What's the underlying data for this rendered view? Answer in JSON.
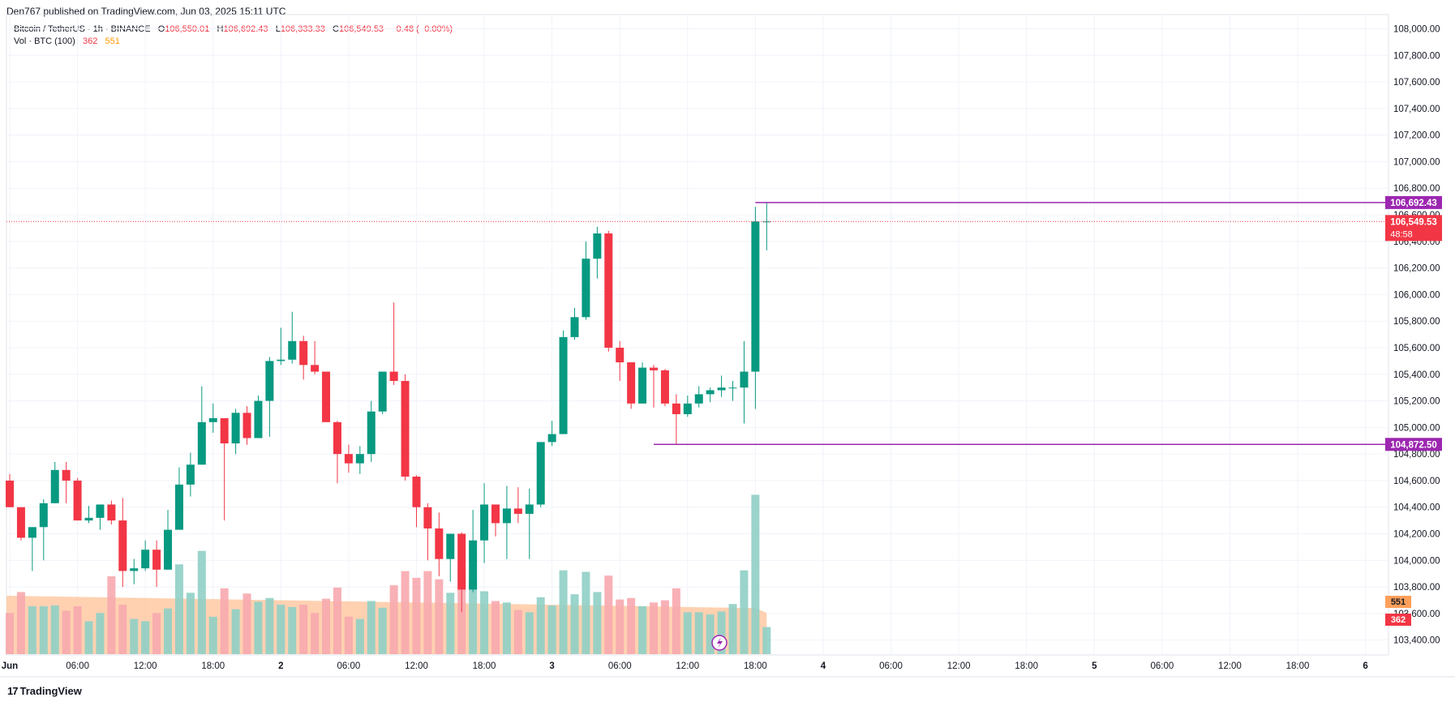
{
  "header": {
    "publish_line": "Den767 published on TradingView.com, Jun 03, 2025 15:11 UTC"
  },
  "legend": {
    "symbol": "Bitcoin / TetherUS · 1h · BINANCE",
    "open_label": "O",
    "open": "106,550.01",
    "high_label": "H",
    "high": "106,692.43",
    "low_label": "L",
    "low": "106,333.33",
    "close_label": "C",
    "close": "106,549.53",
    "change": "−0.48 (−0.00%)",
    "volume_label": "Vol · BTC (100)",
    "volume_current": "362",
    "volume_ma": "551"
  },
  "price_labels": {
    "high_level": "106,692.43",
    "current_price": "106,549.53",
    "countdown": "48:58",
    "low_level": "104,872.50",
    "vol_ma_badge": "551",
    "vol_badge": "362"
  },
  "colors": {
    "up": "#089981",
    "down": "#F23645",
    "vol_up": "#8FCFC5",
    "vol_down": "#F7A9AE",
    "vol_ma_area": "#FFC9A3",
    "level_line": "#9C27B0",
    "grid": "#F0F3FA"
  },
  "logo": {
    "text": "TradingView"
  },
  "chart_data": {
    "type": "candlestick",
    "symbol": "Bitcoin / TetherUS",
    "interval": "1h",
    "exchange": "BINANCE",
    "y_ticks": [
      "108,000.00",
      "107,800.00",
      "107,600.00",
      "107,400.00",
      "107,200.00",
      "107,000.00",
      "106,800.00",
      "106,600.00",
      "106,400.00",
      "106,200.00",
      "106,000.00",
      "105,800.00",
      "105,600.00",
      "105,400.00",
      "105,200.00",
      "105,000.00",
      "104,800.00",
      "104,600.00",
      "104,400.00",
      "104,200.00",
      "104,000.00",
      "103,800.00",
      "103,600.00",
      "103,400.00"
    ],
    "ylim": [
      103300,
      108100
    ],
    "x_ticks": [
      {
        "label": "Jun",
        "index": 0
      },
      {
        "label": "06:00",
        "index": 6
      },
      {
        "label": "12:00",
        "index": 12
      },
      {
        "label": "18:00",
        "index": 18
      },
      {
        "label": "2",
        "index": 24
      },
      {
        "label": "06:00",
        "index": 30
      },
      {
        "label": "12:00",
        "index": 36
      },
      {
        "label": "18:00",
        "index": 42
      },
      {
        "label": "3",
        "index": 48
      },
      {
        "label": "06:00",
        "index": 54
      },
      {
        "label": "12:00",
        "index": 60
      },
      {
        "label": "18:00",
        "index": 66
      },
      {
        "label": "4",
        "index": 72
      },
      {
        "label": "06:00",
        "index": 78
      },
      {
        "label": "12:00",
        "index": 84
      },
      {
        "label": "18:00",
        "index": 90
      },
      {
        "label": "5",
        "index": 96
      },
      {
        "label": "06:00",
        "index": 102
      },
      {
        "label": "12:00",
        "index": 108
      },
      {
        "label": "18:00",
        "index": 114
      },
      {
        "label": "6",
        "index": 120
      }
    ],
    "candles": [
      {
        "o": 104600,
        "h": 104650,
        "l": 104400,
        "c": 104400,
        "v": 550
      },
      {
        "o": 104400,
        "h": 104400,
        "l": 104150,
        "c": 104170,
        "v": 830
      },
      {
        "o": 104170,
        "h": 104250,
        "l": 103920,
        "c": 104250,
        "v": 640
      },
      {
        "o": 104250,
        "h": 104460,
        "l": 104000,
        "c": 104430,
        "v": 640
      },
      {
        "o": 104430,
        "h": 104740,
        "l": 104430,
        "c": 104680,
        "v": 650
      },
      {
        "o": 104680,
        "h": 104740,
        "l": 104430,
        "c": 104600,
        "v": 580
      },
      {
        "o": 104600,
        "h": 104620,
        "l": 104300,
        "c": 104300,
        "v": 640
      },
      {
        "o": 104300,
        "h": 104410,
        "l": 104280,
        "c": 104320,
        "v": 440
      },
      {
        "o": 104320,
        "h": 104420,
        "l": 104230,
        "c": 104420,
        "v": 550
      },
      {
        "o": 104420,
        "h": 104450,
        "l": 104270,
        "c": 104300,
        "v": 1040
      },
      {
        "o": 104300,
        "h": 104470,
        "l": 103800,
        "c": 103920,
        "v": 660
      },
      {
        "o": 103920,
        "h": 104010,
        "l": 103820,
        "c": 103940,
        "v": 470
      },
      {
        "o": 103940,
        "h": 104150,
        "l": 103920,
        "c": 104080,
        "v": 440
      },
      {
        "o": 104080,
        "h": 104150,
        "l": 103800,
        "c": 103930,
        "v": 550
      },
      {
        "o": 103930,
        "h": 104380,
        "l": 103930,
        "c": 104230,
        "v": 610
      },
      {
        "o": 104230,
        "h": 104700,
        "l": 104230,
        "c": 104570,
        "v": 1200
      },
      {
        "o": 104570,
        "h": 104810,
        "l": 104480,
        "c": 104720,
        "v": 820
      },
      {
        "o": 104720,
        "h": 105310,
        "l": 104720,
        "c": 105040,
        "v": 1380
      },
      {
        "o": 105040,
        "h": 105180,
        "l": 104960,
        "c": 105070,
        "v": 500
      },
      {
        "o": 105070,
        "h": 105070,
        "l": 104300,
        "c": 104880,
        "v": 880
      },
      {
        "o": 104880,
        "h": 105140,
        "l": 104800,
        "c": 105110,
        "v": 600
      },
      {
        "o": 105110,
        "h": 105160,
        "l": 104870,
        "c": 104920,
        "v": 810
      },
      {
        "o": 104920,
        "h": 105240,
        "l": 104920,
        "c": 105200,
        "v": 700
      },
      {
        "o": 105200,
        "h": 105530,
        "l": 104930,
        "c": 105500,
        "v": 750
      },
      {
        "o": 105500,
        "h": 105750,
        "l": 105470,
        "c": 105510,
        "v": 660
      },
      {
        "o": 105510,
        "h": 105870,
        "l": 105480,
        "c": 105650,
        "v": 630
      },
      {
        "o": 105650,
        "h": 105690,
        "l": 105360,
        "c": 105470,
        "v": 660
      },
      {
        "o": 105470,
        "h": 105650,
        "l": 105400,
        "c": 105420,
        "v": 550
      },
      {
        "o": 105420,
        "h": 105420,
        "l": 105060,
        "c": 105040,
        "v": 740
      },
      {
        "o": 105040,
        "h": 105050,
        "l": 104580,
        "c": 104800,
        "v": 890
      },
      {
        "o": 104800,
        "h": 104870,
        "l": 104660,
        "c": 104730,
        "v": 500
      },
      {
        "o": 104730,
        "h": 104860,
        "l": 104650,
        "c": 104800,
        "v": 470
      },
      {
        "o": 104800,
        "h": 105200,
        "l": 104740,
        "c": 105120,
        "v": 710
      },
      {
        "o": 105120,
        "h": 105420,
        "l": 105100,
        "c": 105420,
        "v": 620
      },
      {
        "o": 105420,
        "h": 105940,
        "l": 105320,
        "c": 105350,
        "v": 920
      },
      {
        "o": 105350,
        "h": 105400,
        "l": 104600,
        "c": 104630,
        "v": 1110
      },
      {
        "o": 104630,
        "h": 104640,
        "l": 104250,
        "c": 104400,
        "v": 1020
      },
      {
        "o": 104400,
        "h": 104430,
        "l": 104000,
        "c": 104240,
        "v": 1110
      },
      {
        "o": 104240,
        "h": 104360,
        "l": 103880,
        "c": 104010,
        "v": 1000
      },
      {
        "o": 104010,
        "h": 104170,
        "l": 103840,
        "c": 104200,
        "v": 820
      },
      {
        "o": 104200,
        "h": 104210,
        "l": 103610,
        "c": 103780,
        "v": 1160
      },
      {
        "o": 103780,
        "h": 104380,
        "l": 103760,
        "c": 104150,
        "v": 1000
      },
      {
        "o": 104150,
        "h": 104580,
        "l": 103980,
        "c": 104420,
        "v": 840
      },
      {
        "o": 104420,
        "h": 104420,
        "l": 104180,
        "c": 104280,
        "v": 710
      },
      {
        "o": 104280,
        "h": 104560,
        "l": 104010,
        "c": 104390,
        "v": 690
      },
      {
        "o": 104390,
        "h": 104550,
        "l": 104280,
        "c": 104350,
        "v": 590
      },
      {
        "o": 104350,
        "h": 104540,
        "l": 104010,
        "c": 104420,
        "v": 560
      },
      {
        "o": 104420,
        "h": 104890,
        "l": 104400,
        "c": 104890,
        "v": 760
      },
      {
        "o": 104890,
        "h": 105050,
        "l": 104860,
        "c": 104950,
        "v": 650
      },
      {
        "o": 104950,
        "h": 105730,
        "l": 104950,
        "c": 105680,
        "v": 1120
      },
      {
        "o": 105680,
        "h": 105900,
        "l": 105660,
        "c": 105830,
        "v": 800
      },
      {
        "o": 105830,
        "h": 106400,
        "l": 105810,
        "c": 106270,
        "v": 1100
      },
      {
        "o": 106270,
        "h": 106510,
        "l": 106120,
        "c": 106460,
        "v": 830
      },
      {
        "o": 106460,
        "h": 106480,
        "l": 105570,
        "c": 105600,
        "v": 1050
      },
      {
        "o": 105600,
        "h": 105650,
        "l": 105350,
        "c": 105490,
        "v": 730
      },
      {
        "o": 105490,
        "h": 105490,
        "l": 105140,
        "c": 105180,
        "v": 750
      },
      {
        "o": 105180,
        "h": 105490,
        "l": 105180,
        "c": 105450,
        "v": 640
      },
      {
        "o": 105450,
        "h": 105470,
        "l": 105150,
        "c": 105430,
        "v": 690
      },
      {
        "o": 105430,
        "h": 105440,
        "l": 105160,
        "c": 105180,
        "v": 720
      },
      {
        "o": 105180,
        "h": 105250,
        "l": 104870,
        "c": 105100,
        "v": 880
      },
      {
        "o": 105100,
        "h": 105240,
        "l": 105080,
        "c": 105180,
        "v": 560
      },
      {
        "o": 105180,
        "h": 105310,
        "l": 105150,
        "c": 105250,
        "v": 560
      },
      {
        "o": 105250,
        "h": 105300,
        "l": 105190,
        "c": 105280,
        "v": 530
      },
      {
        "o": 105280,
        "h": 105390,
        "l": 105230,
        "c": 105300,
        "v": 570
      },
      {
        "o": 105300,
        "h": 105350,
        "l": 105200,
        "c": 105300,
        "v": 670
      },
      {
        "o": 105300,
        "h": 105650,
        "l": 105030,
        "c": 105420,
        "v": 1120
      },
      {
        "o": 105420,
        "h": 106660,
        "l": 105140,
        "c": 106550,
        "v": 2130
      },
      {
        "o": 106550,
        "h": 106692,
        "l": 106333,
        "c": 106550,
        "v": 362
      }
    ],
    "volume_ma_period": 100,
    "volume_ma_last": 551,
    "levels": [
      {
        "price": 106692.43,
        "start_index": 66
      },
      {
        "price": 104872.5,
        "start_index": 57
      }
    ],
    "current_price": 106549.53,
    "title": "Bitcoin / TetherUS · 1h · BINANCE",
    "xlabel": "",
    "ylabel": ""
  }
}
